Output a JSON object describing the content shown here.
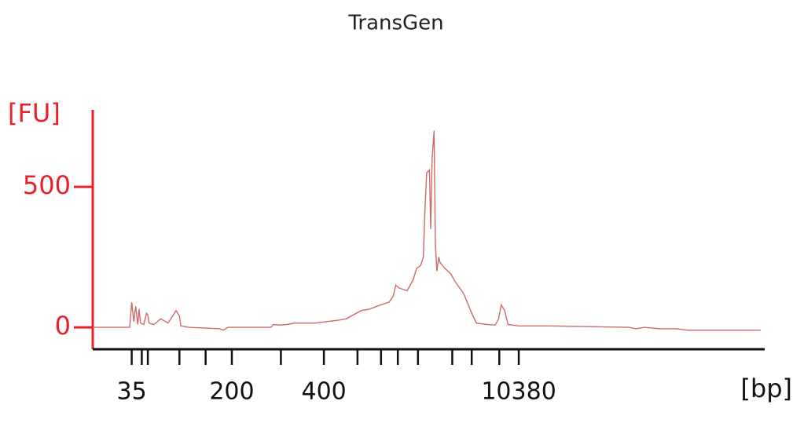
{
  "chart_data": {
    "type": "line",
    "title": "TransGen",
    "y_label": "[FU]",
    "x_label": "[bp]",
    "xlim": [
      0,
      100
    ],
    "ylim": [
      -78,
      774
    ],
    "yticks": [
      0,
      500
    ],
    "xticks": [
      {
        "value": 5.8,
        "label": "35"
      },
      {
        "value": 20.7,
        "label": "200"
      },
      {
        "value": 34.4,
        "label": "400"
      },
      {
        "value": 63.4,
        "label": "10380"
      }
    ],
    "minor_xticks": [
      7.3,
      8.2,
      12.9,
      16.8,
      28.0,
      39.4,
      42.9,
      45.4,
      48.4,
      53.5,
      56.4,
      60.5
    ],
    "axis_color": "#e8202a",
    "series": [
      {
        "color": "#cd6b6b",
        "x": [
          0,
          5.5,
          5.8,
          6.1,
          6.4,
          6.7,
          6.9,
          7.1,
          7.6,
          8.0,
          8.2,
          8.4,
          9.1,
          10.1,
          10.5,
          11.2,
          11.9,
          12.4,
          12.9,
          13.1,
          14.3,
          18.9,
          19.4,
          20.1,
          26.5,
          26.9,
          27.7,
          28.9,
          30.1,
          33.0,
          36.5,
          37.7,
          40.0,
          41.2,
          42.3,
          44.1,
          44.7,
          45.1,
          45.6,
          46.8,
          47.7,
          48.2,
          48.8,
          49.2,
          49.4,
          49.7,
          50.1,
          50.3,
          50.5,
          50.8,
          51.0,
          51.2,
          51.5,
          51.7,
          52.4,
          53.3,
          54.0,
          55.2,
          56.4,
          57.1,
          58.7,
          59.9,
          60.4,
          60.8,
          61.3,
          61.8,
          63.4,
          68.1,
          79.8,
          80.9,
          82.1,
          84.4,
          86.8,
          88.5,
          99.4
        ],
        "values": [
          0,
          0,
          90,
          20,
          75,
          10,
          65,
          15,
          10,
          50,
          45,
          15,
          10,
          30,
          25,
          15,
          40,
          60,
          40,
          5,
          0,
          -5,
          -10,
          0,
          0,
          10,
          8,
          10,
          15,
          15,
          25,
          30,
          60,
          65,
          75,
          90,
          110,
          150,
          140,
          130,
          170,
          210,
          220,
          250,
          400,
          550,
          560,
          350,
          600,
          700,
          300,
          200,
          250,
          230,
          210,
          190,
          160,
          120,
          50,
          15,
          10,
          8,
          30,
          80,
          60,
          10,
          5,
          5,
          0,
          -5,
          0,
          -5,
          -5,
          -10,
          -10
        ]
      }
    ]
  }
}
